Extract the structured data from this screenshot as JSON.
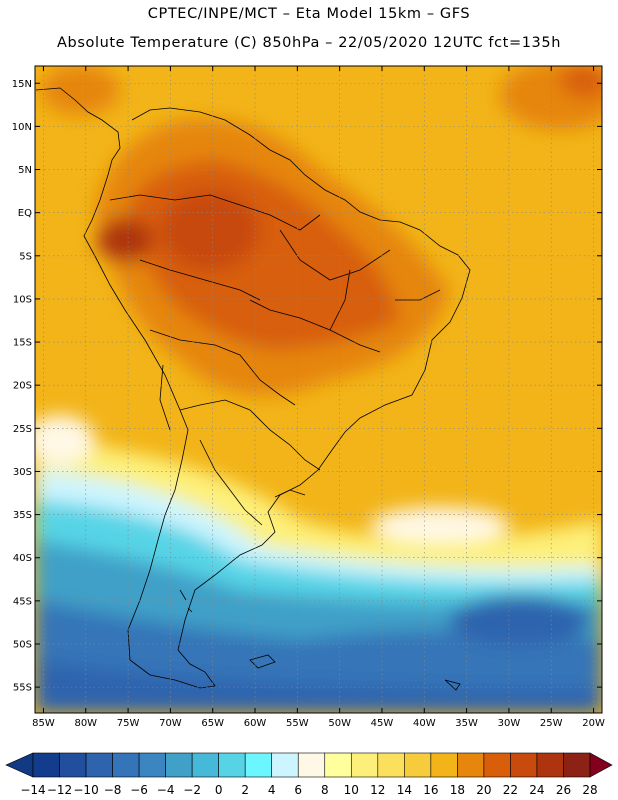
{
  "header": {
    "line1": "CPTEC/INPE/MCT –  Eta Model 15km – GFS",
    "line2": "Absolute Temperature (C) 850hPa – 22/05/2020 12UTC fct=135h"
  },
  "map": {
    "lon_range": [
      -86,
      -19
    ],
    "lat_range": [
      -58,
      17
    ],
    "lat_ticks": [
      {
        "value": 15,
        "label": "15N"
      },
      {
        "value": 10,
        "label": "10N"
      },
      {
        "value": 5,
        "label": "5N"
      },
      {
        "value": 0,
        "label": "EQ"
      },
      {
        "value": -5,
        "label": "5S"
      },
      {
        "value": -10,
        "label": "10S"
      },
      {
        "value": -15,
        "label": "15S"
      },
      {
        "value": -20,
        "label": "20S"
      },
      {
        "value": -25,
        "label": "25S"
      },
      {
        "value": -30,
        "label": "30S"
      },
      {
        "value": -35,
        "label": "35S"
      },
      {
        "value": -40,
        "label": "40S"
      },
      {
        "value": -45,
        "label": "45S"
      },
      {
        "value": -50,
        "label": "50S"
      },
      {
        "value": -55,
        "label": "55S"
      }
    ],
    "lon_ticks": [
      {
        "value": -85,
        "label": "85W"
      },
      {
        "value": -80,
        "label": "80W"
      },
      {
        "value": -75,
        "label": "75W"
      },
      {
        "value": -70,
        "label": "70W"
      },
      {
        "value": -65,
        "label": "65W"
      },
      {
        "value": -60,
        "label": "60W"
      },
      {
        "value": -55,
        "label": "55W"
      },
      {
        "value": -50,
        "label": "50W"
      },
      {
        "value": -45,
        "label": "45W"
      },
      {
        "value": -40,
        "label": "40W"
      },
      {
        "value": -35,
        "label": "35W"
      },
      {
        "value": -30,
        "label": "30W"
      },
      {
        "value": -25,
        "label": "25W"
      },
      {
        "value": -20,
        "label": "20W"
      }
    ],
    "gridlines": "dotted"
  },
  "colorbar": {
    "labels": [
      "-14",
      "-12",
      "-10",
      "-8",
      "-6",
      "-4",
      "-2",
      "0",
      "2",
      "4",
      "6",
      "8",
      "10",
      "12",
      "14",
      "16",
      "18",
      "20",
      "22",
      "24",
      "26",
      "28"
    ],
    "colors": [
      "#143c8c",
      "#214f9e",
      "#2e63ae",
      "#3574b8",
      "#3b86c0",
      "#40a0c8",
      "#46b8d8",
      "#56d4e6",
      "#6cf6ff",
      "#cdf5ff",
      "#fff8e6",
      "#ffff9e",
      "#fdf07a",
      "#fbe05e",
      "#f6cb3c",
      "#f2b418",
      "#e6860c",
      "#d85e0a",
      "#c84a0c",
      "#ae3410",
      "#8c2216"
    ],
    "under_color": "#123a82",
    "over_color": "#82001e"
  }
}
